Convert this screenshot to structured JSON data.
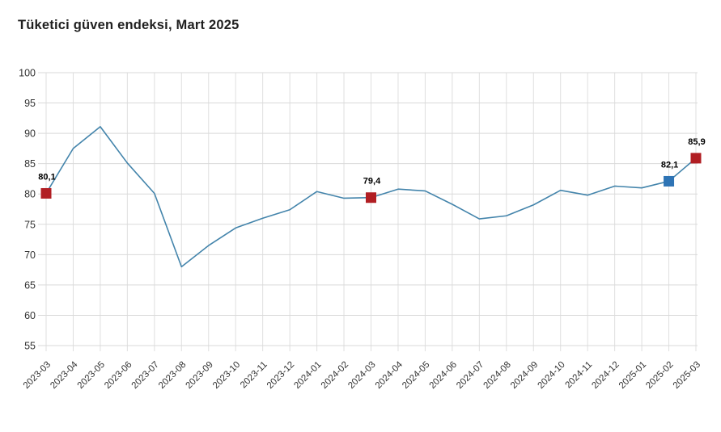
{
  "page": {
    "title": "Tüketici güven endeksi, Mart 2025"
  },
  "colors": {
    "background": "#ffffff",
    "line": "#4384ab",
    "marker_red": "#b11e23",
    "marker_blue": "#2e74b5",
    "grid": "#d9d9d9",
    "axis_text": "#333333",
    "title_text": "#1f1f1f",
    "annotation_text": "#000000"
  },
  "chart_data": {
    "type": "line",
    "title": "Tüketici güven endeksi, Mart 2025",
    "xlabel": "",
    "ylabel": "",
    "ylim": [
      55,
      100
    ],
    "ytick_step": 5,
    "grid": true,
    "legend_position": "none",
    "x": [
      "2023-03",
      "2023-04",
      "2023-05",
      "2023-06",
      "2023-07",
      "2023-08",
      "2023-09",
      "2023-10",
      "2023-11",
      "2023-12",
      "2024-01",
      "2024-02",
      "2024-03",
      "2024-04",
      "2024-05",
      "2024-06",
      "2024-07",
      "2024-08",
      "2024-09",
      "2024-10",
      "2024-11",
      "2024-12",
      "2025-01",
      "2025-02",
      "2025-03"
    ],
    "series": [
      {
        "name": "Tüketici güven endeksi",
        "values": [
          80.1,
          87.5,
          91.1,
          85.1,
          80.1,
          68.0,
          71.5,
          74.4,
          76.0,
          77.4,
          80.4,
          79.3,
          79.4,
          80.8,
          80.5,
          78.3,
          75.9,
          76.4,
          78.2,
          80.6,
          79.8,
          81.3,
          81.0,
          82.1,
          85.9
        ]
      }
    ],
    "annotations": [
      {
        "x": "2023-03",
        "value": 80.1,
        "label": "80,1",
        "marker_color_key": "marker_red"
      },
      {
        "x": "2024-03",
        "value": 79.4,
        "label": "79,4",
        "marker_color_key": "marker_red"
      },
      {
        "x": "2025-02",
        "value": 82.1,
        "label": "82,1",
        "marker_color_key": "marker_blue"
      },
      {
        "x": "2025-03",
        "value": 85.9,
        "label": "85,9",
        "marker_color_key": "marker_red"
      }
    ]
  }
}
